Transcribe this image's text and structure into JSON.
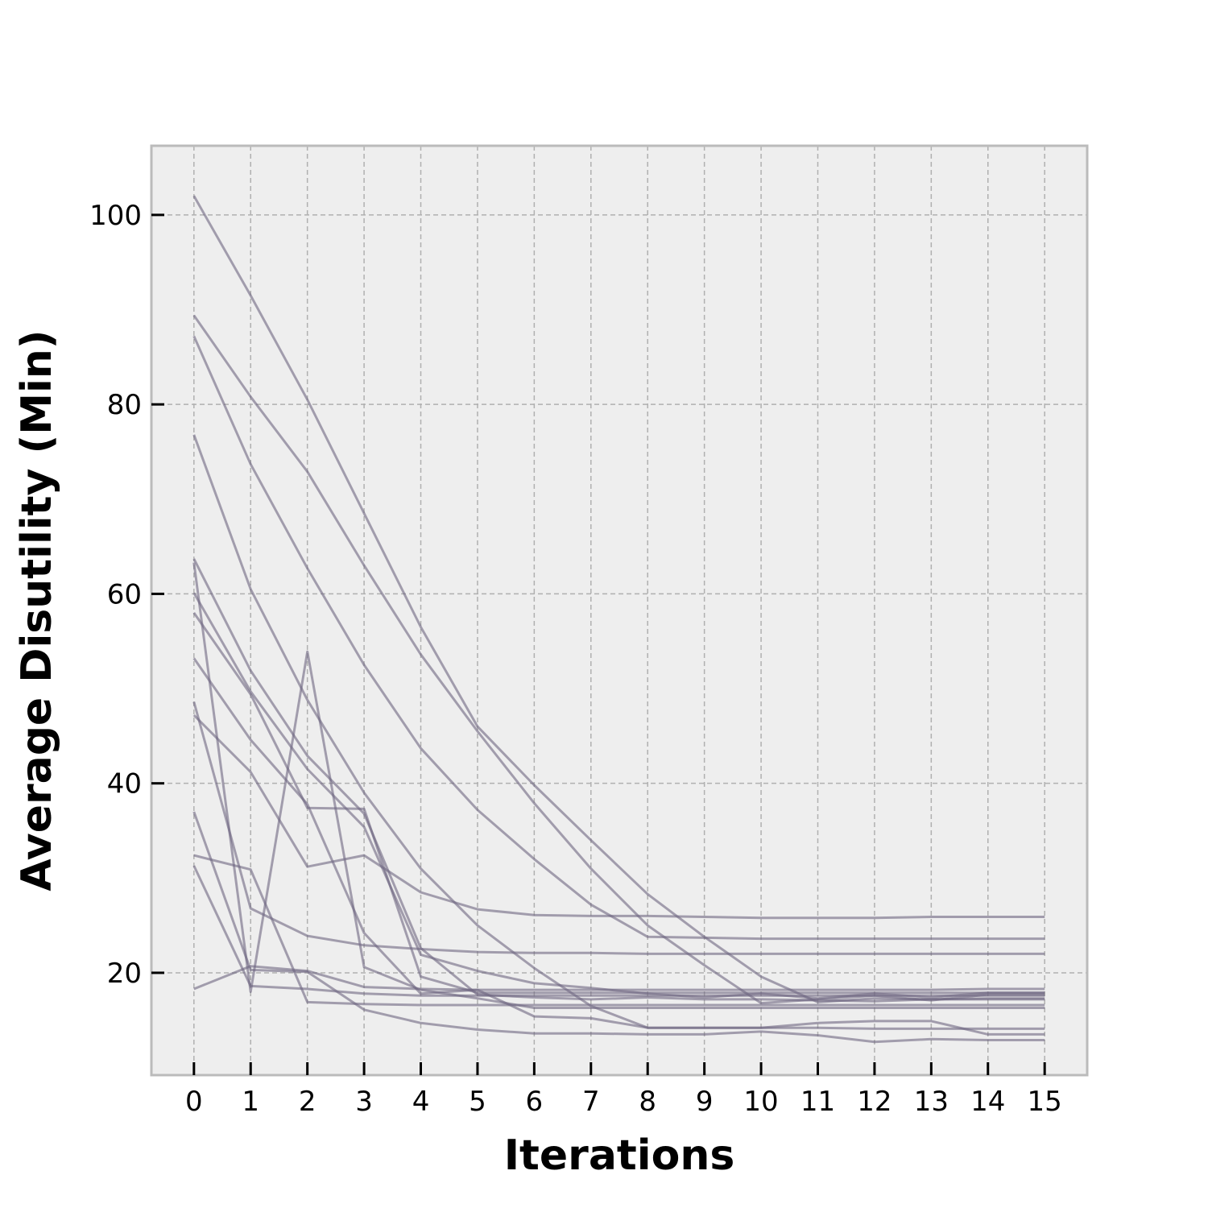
{
  "chart_data": {
    "type": "line",
    "title": "",
    "xlabel": "Iterations",
    "ylabel": "Average Disutility (Min)",
    "xlim": [
      -0.75,
      15.75
    ],
    "ylim": [
      9.2,
      107.3
    ],
    "x": [
      0,
      1,
      2,
      3,
      4,
      5,
      6,
      7,
      8,
      9,
      10,
      11,
      12,
      13,
      14,
      15
    ],
    "xticks": [
      0,
      1,
      2,
      3,
      4,
      5,
      6,
      7,
      8,
      9,
      10,
      11,
      12,
      13,
      14,
      15
    ],
    "yticks": [
      20,
      40,
      60,
      80,
      100
    ],
    "grid": true,
    "legend": "none",
    "colors": {
      "line": "#6e6680",
      "plot_bg": "#eeeeee",
      "frame": "#bbbbbb"
    },
    "series": [
      {
        "values": [
          102.0,
          91.5,
          80.5,
          68.5,
          56.5,
          46.0,
          39.8,
          34.0,
          28.3,
          23.8,
          19.6,
          16.9,
          17.3,
          17.2,
          17.2,
          17.2
        ]
      },
      {
        "values": [
          89.4,
          80.8,
          72.9,
          63.0,
          53.6,
          45.5,
          37.9,
          31.0,
          25.0,
          20.8,
          16.8,
          17.2,
          17.6,
          17.1,
          17.7,
          17.7
        ]
      },
      {
        "values": [
          87.2,
          73.7,
          62.7,
          52.5,
          43.7,
          37.2,
          32.0,
          27.2,
          23.8,
          23.7,
          23.6,
          23.6,
          23.6,
          23.6,
          23.6,
          23.6
        ]
      },
      {
        "values": [
          76.8,
          60.5,
          48.8,
          39.0,
          31.0,
          25.0,
          20.5,
          16.5,
          14.2,
          14.2,
          14.2,
          14.2,
          14.1,
          14.1,
          14.1,
          14.1
        ]
      },
      {
        "values": [
          63.7,
          51.9,
          42.9,
          36.8,
          22.6,
          17.7,
          17.4,
          17.2,
          17.4,
          17.2,
          17.2,
          17.1,
          17.0,
          17.2,
          17.3,
          17.3
        ]
      },
      {
        "values": [
          63.3,
          18.0,
          53.9,
          20.6,
          18.2,
          17.3,
          16.3,
          16.3,
          16.3,
          16.3,
          16.3,
          16.3,
          16.3,
          16.3,
          16.3,
          16.3
        ]
      },
      {
        "values": [
          60.1,
          49.7,
          41.5,
          35.4,
          21.9,
          20.2,
          18.9,
          18.4,
          17.8,
          17.4,
          17.8,
          17.3,
          17.8,
          17.4,
          17.9,
          17.9
        ]
      },
      {
        "values": [
          58.0,
          49.4,
          37.4,
          37.3,
          19.6,
          17.9,
          17.9,
          17.9,
          17.9,
          17.9,
          17.9,
          17.9,
          17.9,
          17.9,
          17.9,
          17.9
        ]
      },
      {
        "values": [
          53.2,
          44.6,
          37.8,
          24.2,
          17.8,
          18.2,
          15.4,
          15.2,
          14.2,
          14.2,
          14.2,
          14.7,
          14.9,
          14.9,
          13.5,
          13.5
        ]
      },
      {
        "values": [
          48.6,
          26.8,
          23.9,
          22.9,
          22.5,
          22.2,
          22.1,
          22.1,
          22.0,
          22.0,
          22.0,
          22.0,
          22.0,
          22.0,
          22.0,
          22.0
        ]
      },
      {
        "values": [
          47.2,
          41.2,
          31.2,
          32.4,
          28.5,
          26.7,
          26.1,
          26.0,
          26.0,
          25.9,
          25.8,
          25.8,
          25.8,
          25.9,
          25.9,
          25.9
        ]
      },
      {
        "values": [
          37.0,
          20.3,
          20.1,
          16.1,
          14.7,
          14.0,
          13.6,
          13.6,
          13.5,
          13.5,
          13.8,
          13.4,
          12.7,
          13.0,
          12.9,
          12.9
        ]
      },
      {
        "values": [
          32.4,
          30.9,
          16.9,
          16.7,
          16.6,
          16.6,
          16.6,
          16.6,
          16.6,
          16.6,
          16.6,
          16.6,
          16.6,
          16.6,
          16.6,
          16.6
        ]
      },
      {
        "values": [
          31.3,
          18.6,
          18.3,
          17.8,
          17.6,
          17.6,
          17.6,
          17.6,
          17.6,
          17.6,
          17.6,
          17.6,
          17.6,
          17.6,
          17.6,
          17.6
        ]
      },
      {
        "values": [
          18.3,
          20.7,
          20.2,
          18.5,
          18.3,
          18.2,
          18.2,
          18.2,
          18.2,
          18.2,
          18.2,
          18.2,
          18.2,
          18.2,
          18.3,
          18.3
        ]
      }
    ]
  }
}
